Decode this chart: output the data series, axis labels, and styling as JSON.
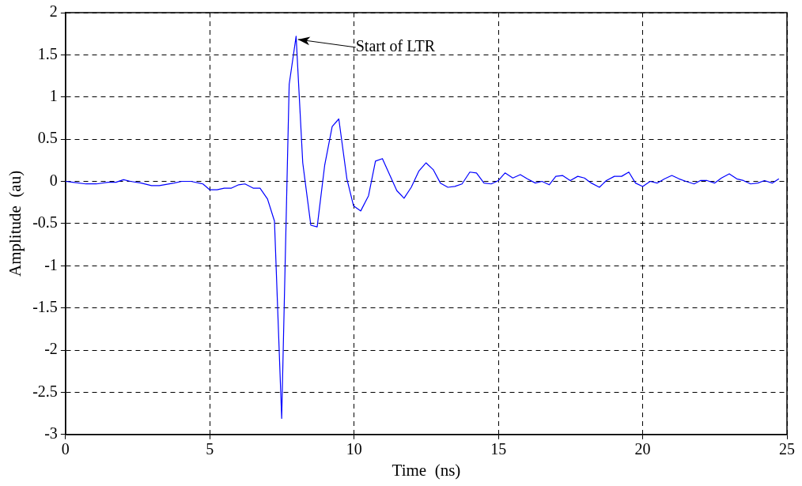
{
  "chart_data": {
    "type": "line",
    "xlabel": "Time  (ns)",
    "ylabel": "Amplitude  (au)",
    "xlim": [
      0,
      25
    ],
    "xticks": [
      0,
      5,
      10,
      15,
      20,
      25
    ],
    "ylim": [
      -3,
      2
    ],
    "yticks": [
      -3,
      -2.5,
      -2,
      -1.5,
      -1,
      -0.5,
      0,
      0.5,
      1,
      1.5,
      2
    ],
    "grid": true,
    "line_style": "solid",
    "marker": "none",
    "annotations": [
      {
        "text": "Start of LTR",
        "x": 8,
        "y": 1.72
      }
    ],
    "series": [
      {
        "color": "#0000ff",
        "x": [
          0,
          0.25,
          0.7,
          1.07,
          1.48,
          1.75,
          2.01,
          2.25,
          2.62,
          2.98,
          3.25,
          3.76,
          4.03,
          4.35,
          4.76,
          5.0,
          5.25,
          5.5,
          5.75,
          6.0,
          6.22,
          6.5,
          6.74,
          7.0,
          7.24,
          7.49,
          7.75,
          7.99,
          8.22,
          8.5,
          8.72,
          8.98,
          9.24,
          9.47,
          9.75,
          9.98,
          10.23,
          10.5,
          10.74,
          10.98,
          11.48,
          11.73,
          11.98,
          12.24,
          12.49,
          12.74,
          12.99,
          13.25,
          13.49,
          13.74,
          14.01,
          14.24,
          14.5,
          14.75,
          15.0,
          15.23,
          15.5,
          15.76,
          16.0,
          16.28,
          16.51,
          16.76,
          16.99,
          17.22,
          17.49,
          17.75,
          17.98,
          18.22,
          18.5,
          18.74,
          19.02,
          19.27,
          19.52,
          19.75,
          20.0,
          20.26,
          20.5,
          20.76,
          21.01,
          21.26,
          21.5,
          21.78,
          22.0,
          22.23,
          22.49,
          22.73,
          23.0,
          23.26,
          23.49,
          23.74,
          23.99,
          24.22,
          24.49,
          24.72
        ],
        "values": [
          0,
          -0.01,
          -0.03,
          -0.03,
          -0.01,
          -0.01,
          0.02,
          0,
          -0.02,
          -0.05,
          -0.05,
          -0.02,
          0,
          0,
          -0.03,
          -0.1,
          -0.1,
          -0.08,
          -0.08,
          -0.04,
          -0.03,
          -0.08,
          -0.08,
          -0.21,
          -0.47,
          -2.81,
          1.15,
          1.72,
          0.22,
          -0.52,
          -0.54,
          0.19,
          0.65,
          0.74,
          0.03,
          -0.29,
          -0.35,
          -0.17,
          0.24,
          0.27,
          -0.11,
          -0.2,
          -0.07,
          0.12,
          0.22,
          0.14,
          -0.02,
          -0.07,
          -0.06,
          -0.03,
          0.11,
          0.1,
          -0.02,
          -0.03,
          0.01,
          0.1,
          0.04,
          0.08,
          0.03,
          -0.02,
          0,
          -0.04,
          0.06,
          0.07,
          0.01,
          0.06,
          0.04,
          -0.02,
          -0.07,
          0.01,
          0.06,
          0.06,
          0.11,
          -0.02,
          -0.06,
          0,
          -0.02,
          0.03,
          0.07,
          0.03,
          0,
          -0.03,
          0.01,
          0.01,
          -0.02,
          0.04,
          0.09,
          0.03,
          0.01,
          -0.03,
          -0.02,
          0.01,
          -0.02,
          0.03
        ]
      }
    ]
  }
}
